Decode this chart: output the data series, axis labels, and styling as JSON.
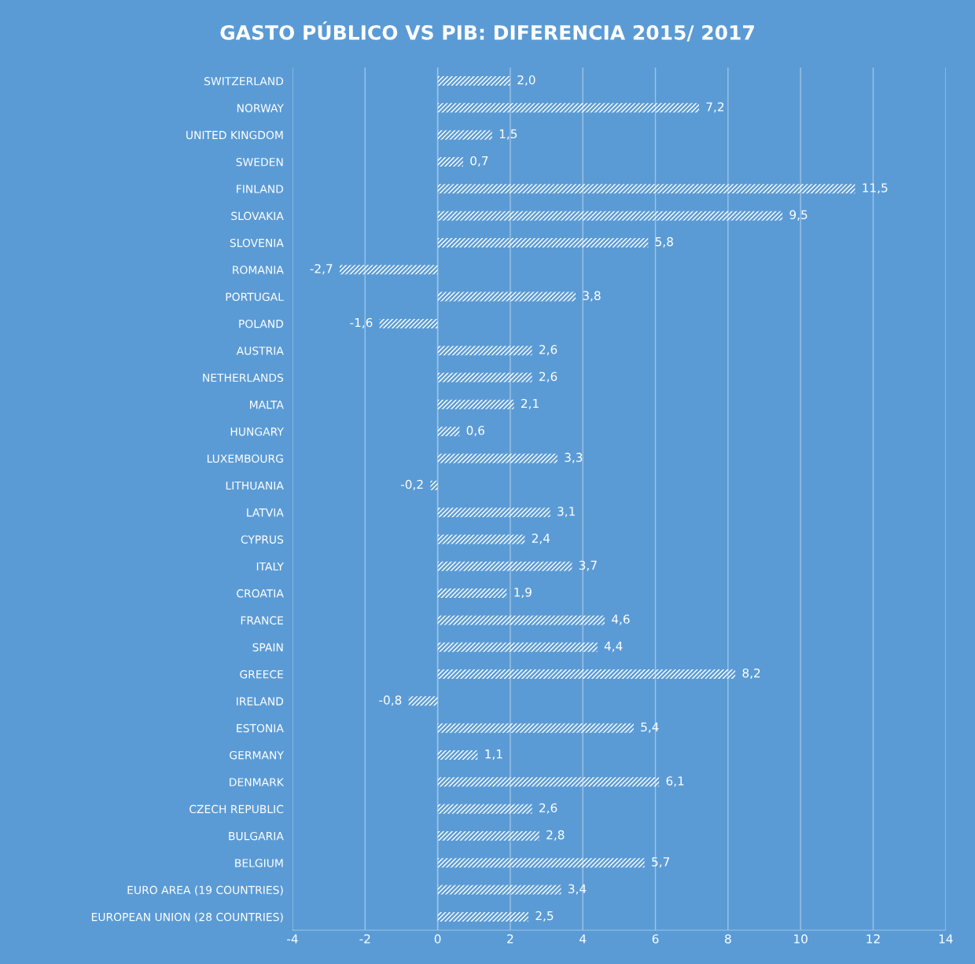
{
  "chart_data": {
    "type": "bar",
    "orientation": "horizontal",
    "title": "GASTO PÚBLICO VS PIB: DIFERENCIA 2015/ 2017",
    "categories": [
      "SWITZERLAND",
      "NORWAY",
      "UNITED KINGDOM",
      "SWEDEN",
      "FINLAND",
      "SLOVAKIA",
      "SLOVENIA",
      "ROMANIA",
      "PORTUGAL",
      "POLAND",
      "AUSTRIA",
      "NETHERLANDS",
      "MALTA",
      "HUNGARY",
      "LUXEMBOURG",
      "LITHUANIA",
      "LATVIA",
      "CYPRUS",
      "ITALY",
      "CROATIA",
      "FRANCE",
      "SPAIN",
      "GREECE",
      "IRELAND",
      "ESTONIA",
      "GERMANY",
      "DENMARK",
      "CZECH REPUBLIC",
      "BULGARIA",
      "BELGIUM",
      "EURO AREA (19 COUNTRIES)",
      "EUROPEAN UNION (28 COUNTRIES)"
    ],
    "values": [
      2.0,
      7.2,
      1.5,
      0.7,
      11.5,
      9.5,
      5.8,
      -2.7,
      3.8,
      -1.6,
      2.6,
      2.6,
      2.1,
      0.6,
      3.3,
      -0.2,
      3.1,
      2.4,
      3.7,
      1.9,
      4.6,
      4.4,
      8.2,
      -0.8,
      5.4,
      1.1,
      6.1,
      2.6,
      2.8,
      5.7,
      3.4,
      2.5
    ],
    "value_labels": [
      "2,0",
      "7,2",
      "1,5",
      "0,7",
      "11,5",
      "9,5",
      "5,8",
      "-2,7",
      "3,8",
      "-1,6",
      "2,6",
      "2,6",
      "2,1",
      "0,6",
      "3,3",
      "-0,2",
      "3,1",
      "2,4",
      "3,7",
      "1,9",
      "4,6",
      "4,4",
      "8,2",
      "-0,8",
      "5,4",
      "1,1",
      "6,1",
      "2,6",
      "2,8",
      "5,7",
      "3,4",
      "2,5"
    ],
    "color": "#ffffff",
    "xlim": [
      -4,
      14
    ],
    "xticks": [
      -4,
      -2,
      0,
      2,
      4,
      6,
      8,
      10,
      12,
      14
    ],
    "grid": "x"
  }
}
